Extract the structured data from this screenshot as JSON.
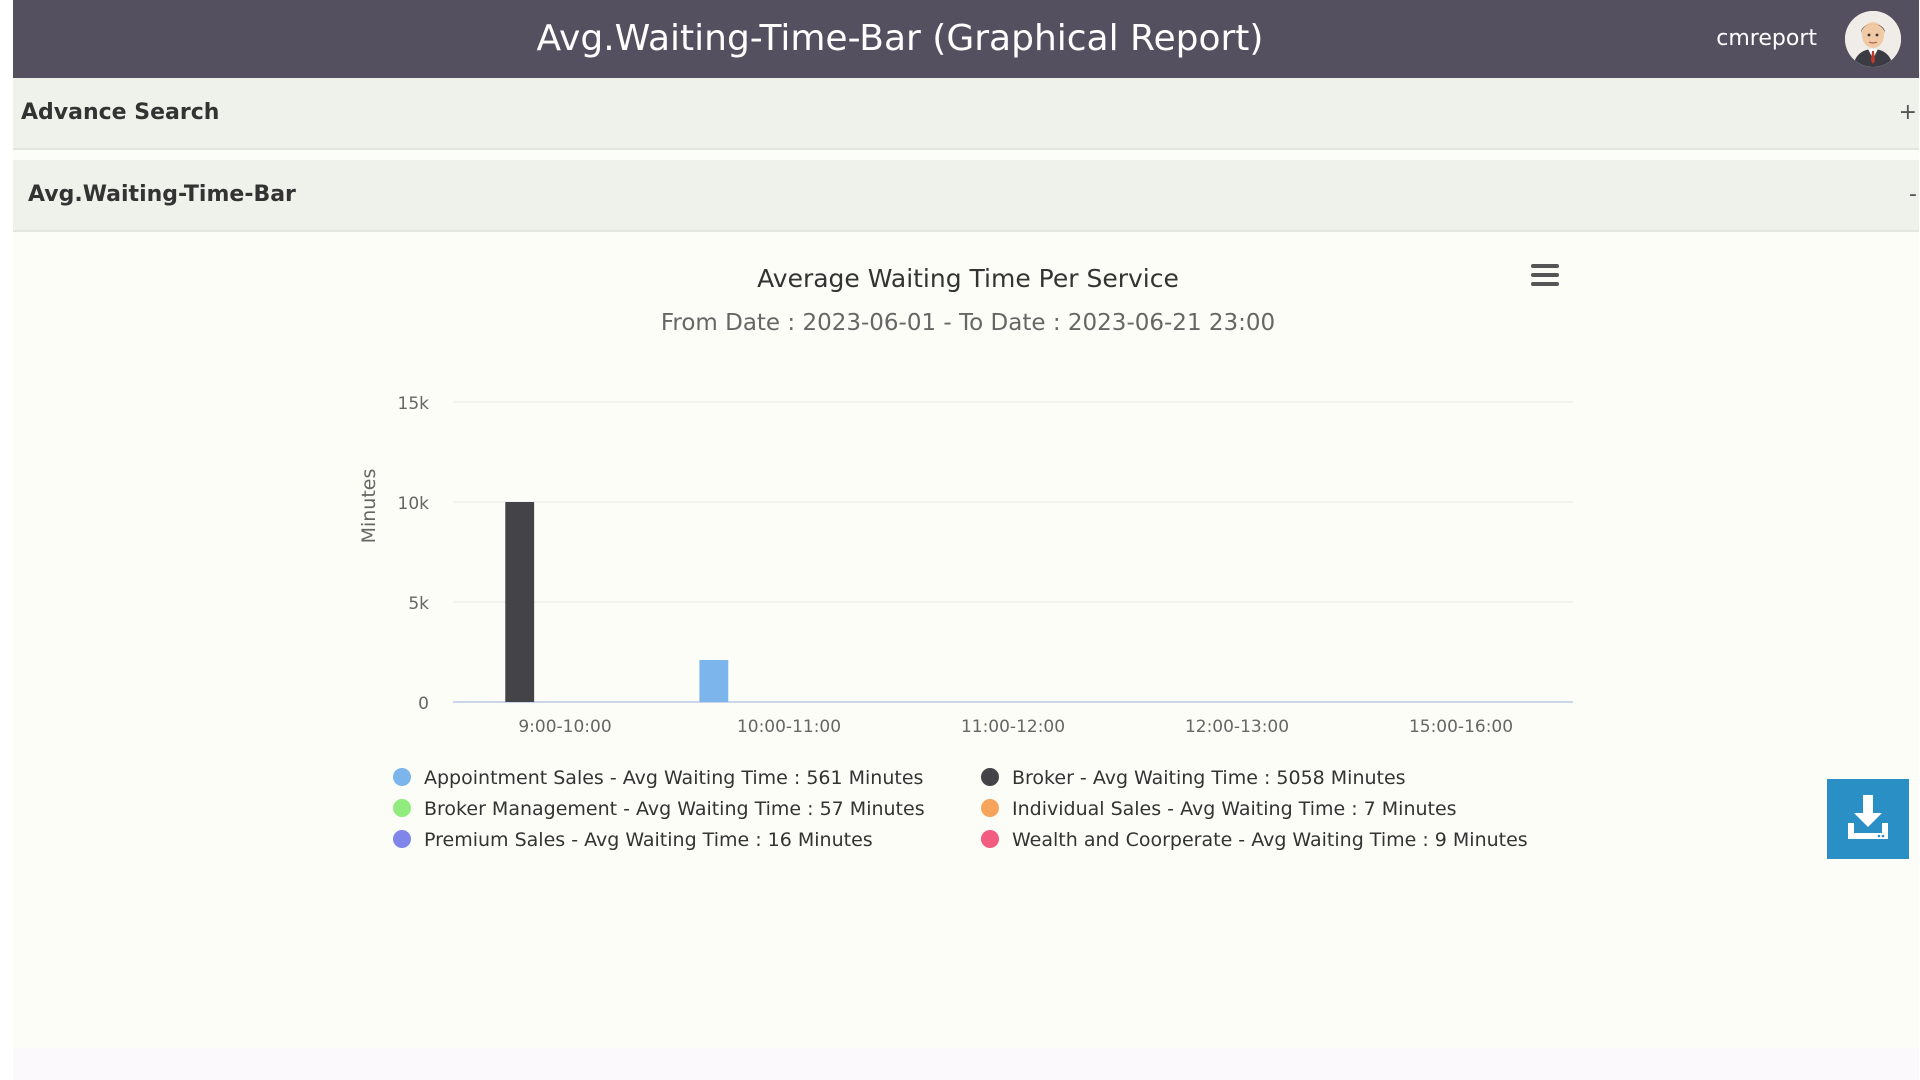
{
  "header": {
    "title": "Avg.Waiting-Time-Bar (Graphical Report)",
    "username": "cmreport",
    "avatar_icon": "user-avatar-icon",
    "bg_color": "#545060"
  },
  "panels": [
    {
      "title": "Advance Search",
      "toggle": "+"
    },
    {
      "title": "Avg.Waiting-Time-Bar",
      "toggle": "-"
    }
  ],
  "download_button": {
    "icon": "download-icon",
    "color": "#2a8fc4"
  },
  "chart_menu_icon": "hamburger-menu-icon",
  "chart_data": {
    "type": "bar",
    "title": "Average Waiting Time Per Service",
    "subtitle": "From Date : 2023-06-01 - To Date : 2023-06-21 23:00",
    "xlabel": "",
    "ylabel": "Minutes",
    "ylim": [
      0,
      15000
    ],
    "yticks": [
      0,
      5000,
      10000,
      15000
    ],
    "ytick_labels": [
      "0",
      "5k",
      "10k",
      "15k"
    ],
    "grid": true,
    "legend_position": "bottom",
    "categories": [
      "9:00-10:00",
      "10:00-11:00",
      "11:00-12:00",
      "12:00-13:00",
      "15:00-16:00"
    ],
    "series": [
      {
        "legend": "Appointment Sales - Avg Waiting Time : 561 Minutes",
        "color": "#7cb5ec",
        "values": [
          0,
          2100,
          0,
          0,
          0
        ]
      },
      {
        "legend": "Broker - Avg Waiting Time : 5058 Minutes",
        "color": "#434348",
        "values": [
          10000,
          0,
          0,
          0,
          0
        ]
      },
      {
        "legend": "Broker Management - Avg Waiting Time : 57 Minutes",
        "color": "#90ed7d",
        "values": [
          0,
          0,
          0,
          0,
          0
        ]
      },
      {
        "legend": "Individual Sales - Avg Waiting Time : 7 Minutes",
        "color": "#f7a35c",
        "values": [
          0,
          0,
          0,
          0,
          0
        ]
      },
      {
        "legend": "Premium Sales - Avg Waiting Time : 16 Minutes",
        "color": "#8085e9",
        "values": [
          0,
          0,
          0,
          0,
          0
        ]
      },
      {
        "legend": "Wealth and Coorperate - Avg Waiting Time : 9 Minutes",
        "color": "#f15c80",
        "values": [
          0,
          0,
          0,
          0,
          0
        ]
      }
    ]
  }
}
